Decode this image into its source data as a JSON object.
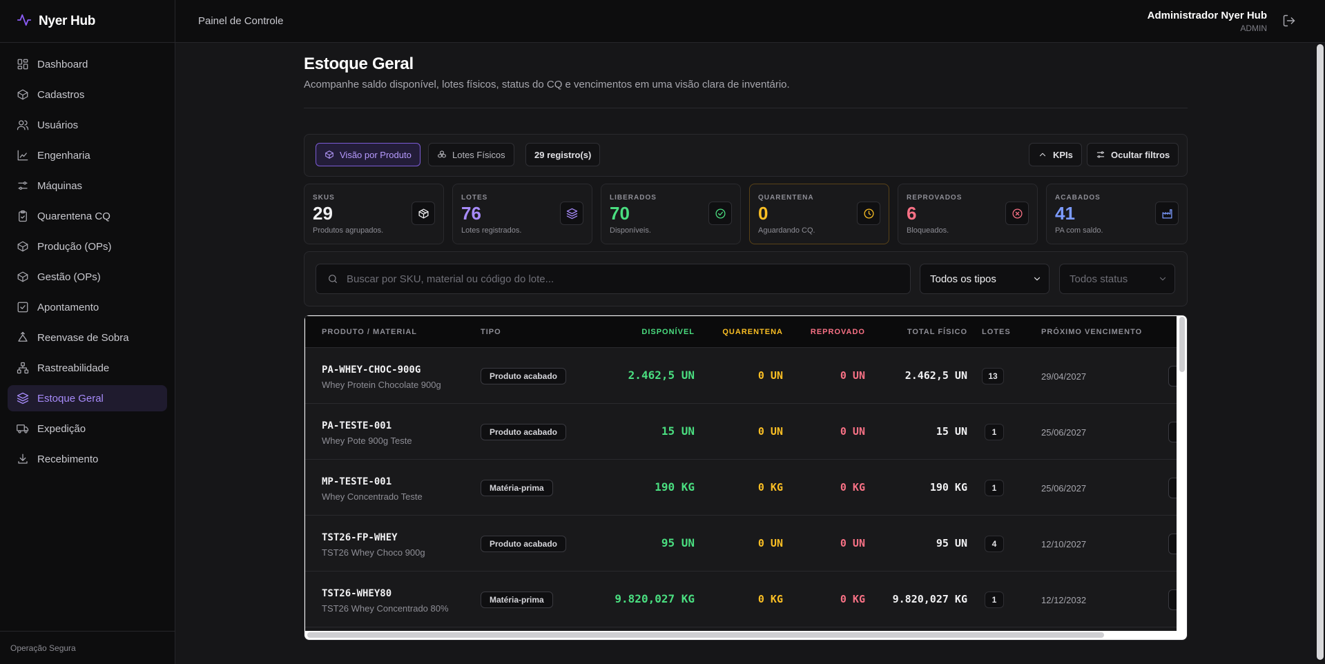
{
  "app": {
    "title": "Nyer Hub",
    "footer": "Operação Segura"
  },
  "topbar": {
    "title": "Painel de Controle",
    "user_name": "Administrador Nyer Hub",
    "user_role": "ADMIN"
  },
  "sidebar": {
    "items": [
      {
        "label": "Dashboard",
        "icon": "dashboard-icon"
      },
      {
        "label": "Cadastros",
        "icon": "box-icon"
      },
      {
        "label": "Usuários",
        "icon": "users-icon"
      },
      {
        "label": "Engenharia",
        "icon": "chart-icon"
      },
      {
        "label": "Máquinas",
        "icon": "sliders-icon"
      },
      {
        "label": "Quarentena CQ",
        "icon": "clipboard-icon"
      },
      {
        "label": "Produção (OPs)",
        "icon": "box-icon"
      },
      {
        "label": "Gestão (OPs)",
        "icon": "box-icon"
      },
      {
        "label": "Apontamento",
        "icon": "checkbox-icon"
      },
      {
        "label": "Reenvase de Sobra",
        "icon": "recycle-icon"
      },
      {
        "label": "Rastreabilidade",
        "icon": "network-icon"
      },
      {
        "label": "Estoque Geral",
        "icon": "layers-icon",
        "active": true
      },
      {
        "label": "Expedição",
        "icon": "truck-icon"
      },
      {
        "label": "Recebimento",
        "icon": "download-icon"
      }
    ]
  },
  "page": {
    "title": "Estoque Geral",
    "subtitle": "Acompanhe saldo disponível, lotes físicos, status do CQ e vencimentos em uma visão clara de inventário."
  },
  "toolbar": {
    "view_product": "Visão por Produto",
    "view_lots": "Lotes Físicos",
    "records": "29 registro(s)",
    "kpis": "KPIs",
    "hide_filters": "Ocultar filtros"
  },
  "kpis": [
    {
      "label": "SKUS",
      "value": "29",
      "desc": "Produtos agrupados.",
      "color": "#f1f1f3",
      "icon": "package-icon"
    },
    {
      "label": "LOTES",
      "value": "76",
      "desc": "Lotes registrados.",
      "color": "#a78bfa",
      "icon": "layers-icon"
    },
    {
      "label": "LIBERADOS",
      "value": "70",
      "desc": "Disponíveis.",
      "color": "#4ade80",
      "icon": "check-circle-icon"
    },
    {
      "label": "QUARENTENA",
      "value": "0",
      "desc": "Aguardando CQ.",
      "color": "#fbbf24",
      "icon": "clock-icon"
    },
    {
      "label": "REPROVADOS",
      "value": "6",
      "desc": "Bloqueados.",
      "color": "#f87185",
      "icon": "x-circle-icon"
    },
    {
      "label": "ACABADOS",
      "value": "41",
      "desc": "PA com saldo.",
      "color": "#7c9bff",
      "icon": "factory-icon"
    }
  ],
  "filters": {
    "search_placeholder": "Buscar por SKU, material ou código do lote...",
    "type_select": "Todos os tipos",
    "status_select": "Todos status"
  },
  "table": {
    "headers": {
      "product": "PRODUTO / MATERIAL",
      "type": "TIPO",
      "available": "DISPONÍVEL",
      "quarantine": "QUARENTENA",
      "rejected": "REPROVADO",
      "total": "TOTAL FÍSICO",
      "lots": "LOTES",
      "expiry": "PRÓXIMO VENCIMENTO"
    },
    "rows": [
      {
        "sku": "PA-WHEY-CHOC-900G",
        "desc": "Whey Protein Chocolate 900g",
        "type": "Produto acabado",
        "available": "2.462,5 UN",
        "quarantine": "0 UN",
        "rejected": "0 UN",
        "total": "2.462,5 UN",
        "lots": "13",
        "expiry": "29/04/2027"
      },
      {
        "sku": "PA-TESTE-001",
        "desc": "Whey Pote 900g Teste",
        "type": "Produto acabado",
        "available": "15 UN",
        "quarantine": "0 UN",
        "rejected": "0 UN",
        "total": "15 UN",
        "lots": "1",
        "expiry": "25/06/2027"
      },
      {
        "sku": "MP-TESTE-001",
        "desc": "Whey Concentrado Teste",
        "type": "Matéria-prima",
        "available": "190 KG",
        "quarantine": "0 KG",
        "rejected": "0 KG",
        "total": "190 KG",
        "lots": "1",
        "expiry": "25/06/2027"
      },
      {
        "sku": "TST26-FP-WHEY",
        "desc": "TST26 Whey Choco 900g",
        "type": "Produto acabado",
        "available": "95 UN",
        "quarantine": "0 UN",
        "rejected": "0 UN",
        "total": "95 UN",
        "lots": "4",
        "expiry": "12/10/2027"
      },
      {
        "sku": "TST26-WHEY80",
        "desc": "TST26 Whey Concentrado 80%",
        "type": "Matéria-prima",
        "available": "9.820,027 KG",
        "quarantine": "0 KG",
        "rejected": "0 KG",
        "total": "9.820,027 KG",
        "lots": "1",
        "expiry": "12/12/2032"
      }
    ]
  }
}
